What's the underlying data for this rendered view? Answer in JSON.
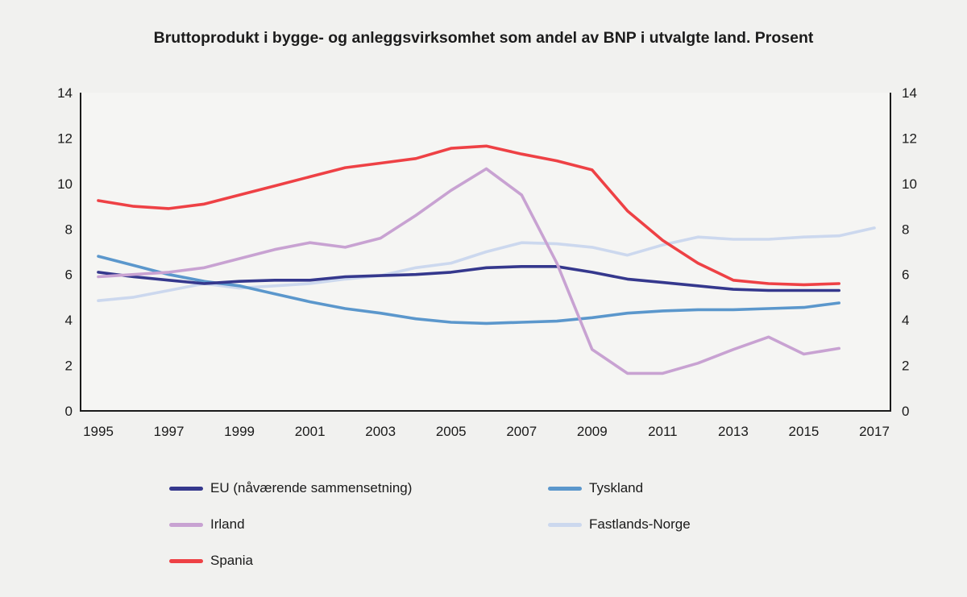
{
  "title": "Bruttoprodukt i bygge- og anleggsvirksomhet som andel av BNP i utvalgte land. Prosent",
  "chart_data": {
    "type": "line",
    "x_range": [
      1995,
      2017
    ],
    "xticks": [
      1995,
      1997,
      1999,
      2001,
      2003,
      2005,
      2007,
      2009,
      2011,
      2013,
      2015,
      2017
    ],
    "ylim": [
      0,
      14
    ],
    "yticks": [
      0,
      2,
      4,
      6,
      8,
      10,
      12,
      14
    ],
    "grid": false,
    "legend_position": "bottom",
    "axis_color": "#1a1a1a",
    "plot_bg": "#f5f5f3",
    "series": [
      {
        "id": "eu",
        "name": "EU (nåværende sammensetning)",
        "color": "#35388d",
        "z": 3,
        "start_year": 1995,
        "values": [
          6.1,
          5.9,
          5.75,
          5.6,
          5.7,
          5.75,
          5.75,
          5.9,
          5.95,
          6.0,
          6.1,
          6.3,
          6.35,
          6.35,
          6.1,
          5.8,
          5.65,
          5.5,
          5.35,
          5.3,
          5.3,
          5.3
        ]
      },
      {
        "id": "tyskland",
        "name": "Tyskland",
        "color": "#5b97cc",
        "z": 2,
        "start_year": 1995,
        "values": [
          6.8,
          6.4,
          6.0,
          5.7,
          5.5,
          5.15,
          4.8,
          4.5,
          4.3,
          4.05,
          3.9,
          3.85,
          3.9,
          3.95,
          4.1,
          4.3,
          4.4,
          4.45,
          4.45,
          4.5,
          4.55,
          4.75
        ]
      },
      {
        "id": "irland",
        "name": "Irland",
        "color": "#c8a2d2",
        "z": 4,
        "start_year": 1995,
        "values": [
          5.9,
          6.0,
          6.1,
          6.3,
          6.7,
          7.1,
          7.4,
          7.2,
          7.6,
          8.6,
          9.7,
          10.65,
          9.5,
          6.5,
          2.7,
          1.65,
          1.65,
          2.1,
          2.7,
          3.25,
          2.5,
          2.75
        ]
      },
      {
        "id": "fastlands-norge",
        "name": "Fastlands-Norge",
        "color": "#ccd8ee",
        "z": 1,
        "start_year": 1995,
        "values": [
          4.85,
          5.0,
          5.3,
          5.6,
          5.4,
          5.5,
          5.6,
          5.8,
          5.95,
          6.3,
          6.5,
          7.0,
          7.4,
          7.35,
          7.2,
          6.85,
          7.3,
          7.65,
          7.55,
          7.55,
          7.65,
          7.7,
          8.05
        ]
      },
      {
        "id": "spania",
        "name": "Spania",
        "color": "#ee4145",
        "z": 5,
        "start_year": 1995,
        "values": [
          9.25,
          9.0,
          8.9,
          9.1,
          9.5,
          9.9,
          10.3,
          10.7,
          10.9,
          11.1,
          11.55,
          11.65,
          11.3,
          11.0,
          10.6,
          8.8,
          7.5,
          6.5,
          5.75,
          5.6,
          5.55,
          5.6
        ]
      }
    ]
  }
}
